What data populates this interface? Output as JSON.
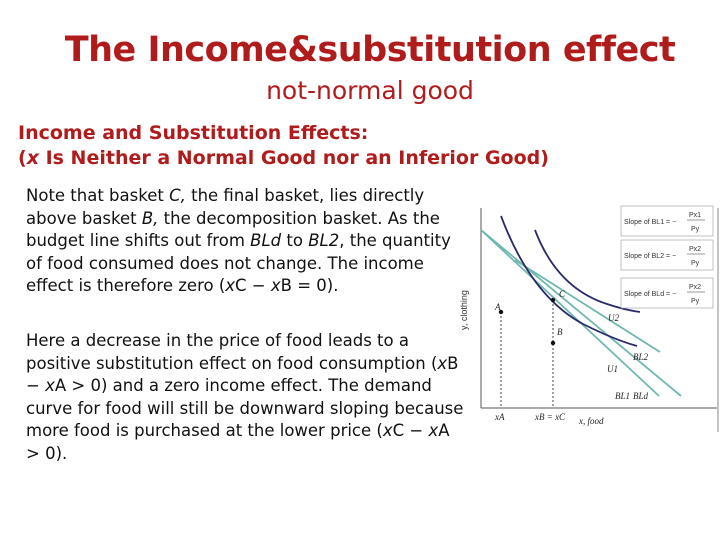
{
  "slide": {
    "title": "The Income&substitution effect",
    "subtitle": "not-normal good",
    "heading_line1": "Income and Substitution Effects:",
    "heading_line2_var": "x",
    "heading_line2_rest": " Is Neither a Normal Good nor an Inferior Good)",
    "heading_line2_open": "("
  },
  "paragraph1": {
    "a": "Note that basket ",
    "b": "C,",
    "c": " the final basket, lies directly above basket ",
    "d": "B,",
    "e": " the decomposition basket. As the budget line shifts out from ",
    "f": "BLd",
    "g": " to ",
    "h": "BL2",
    "i": ", the quantity of food consumed does not change. The income effect is therefore zero (",
    "j": "x",
    "k": "C − ",
    "l": "x",
    "m": "B = 0)."
  },
  "paragraph2": {
    "a": "Here a decrease in the price of food leads to a positive substitution effect on food consumption (",
    "b": "x",
    "c": "B − ",
    "d": "x",
    "e": "A > 0) and a zero income effect. The demand curve for food will still be downward sloping because more food is purchased at the lower price (",
    "f": "x",
    "g": "C − ",
    "h": "x",
    "i": "A > 0)."
  },
  "diagram": {
    "y_axis_label": "y, clothing",
    "x_axis_label": "x, food",
    "x_ticks": {
      "xA": "xA",
      "xB": "xB = xC"
    },
    "points": {
      "A": "A",
      "B": "B",
      "C": "C"
    },
    "curves": {
      "U1": "U1",
      "U2": "U2"
    },
    "lines": {
      "BL1": "BL1",
      "BL2": "BL2",
      "BLd": "BLd"
    },
    "slope_boxes": [
      {
        "label": "Slope of BL1 = −",
        "num": "Px1",
        "den": "Py"
      },
      {
        "label": "Slope of BL2 = −",
        "num": "Px2",
        "den": "Py"
      },
      {
        "label": "Slope of BLd = −",
        "num": "Px2",
        "den": "Py"
      }
    ],
    "colors": {
      "budget_lines": "#6fb8b0",
      "curves": "#2a2a6a",
      "title": "#b01c1c"
    }
  }
}
